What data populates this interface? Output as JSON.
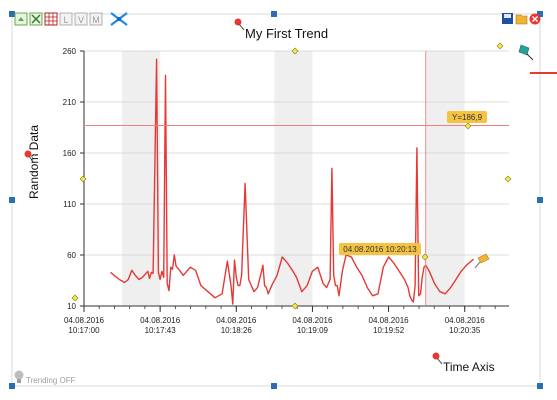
{
  "toolbar": {
    "left_icons": [
      "export-icon",
      "fit-icon",
      "grid-icon",
      "L-icon",
      "V-icon",
      "M-icon",
      "cursor-mode-icon"
    ],
    "left_letters": [
      "L",
      "V",
      "M"
    ],
    "right_icons": [
      "save-icon",
      "open-icon",
      "close-icon"
    ]
  },
  "status": {
    "trending": "Trending OFF"
  },
  "annotations": {
    "y_cursor": "Y=186,9",
    "x_cursor": "04.08.2016 10:20:13"
  },
  "colors": {
    "line": "#e53935",
    "cursor": "#f08080",
    "band": "#efefef",
    "tooltip_bg": "#f5c342",
    "handle": "#2a6fb0",
    "diamond": "#f2e84b"
  },
  "chart_data": {
    "type": "line",
    "title": "My First Trend",
    "xlabel": "Time Axis",
    "ylabel": "Random Data",
    "ylim": [
      10,
      260
    ],
    "xlim": [
      "10:17:00",
      "10:21:00"
    ],
    "yticks": [
      "10",
      "60",
      "110",
      "160",
      "210",
      "260"
    ],
    "xticks": [
      {
        "date": "04.08.2016",
        "time": "10:17:00"
      },
      {
        "date": "04.08.2016",
        "time": "10:17:43"
      },
      {
        "date": "04.08.2016",
        "time": "10:18:26"
      },
      {
        "date": "04.08.2016",
        "time": "10:19:09"
      },
      {
        "date": "04.08.2016",
        "time": "10:19:52"
      },
      {
        "date": "04.08.2016",
        "time": "10:20:35"
      }
    ],
    "grid": true,
    "cursor": {
      "x": "10:20:13",
      "y": 186.9
    },
    "series": [
      {
        "x": [
          "10:17:15",
          "10:17:17",
          "10:17:20",
          "10:17:23",
          "10:17:25",
          "10:17:27",
          "10:17:29",
          "10:17:31",
          "10:17:33",
          "10:17:36",
          "10:17:37",
          "10:17:38",
          "10:17:39",
          "10:17:41",
          "10:17:42",
          "10:17:43",
          "10:17:44",
          "10:17:45",
          "10:17:46",
          "10:17:47",
          "10:17:48",
          "10:17:49",
          "10:17:50",
          "10:17:51",
          "10:17:52",
          "10:17:54",
          "10:17:56",
          "10:17:58",
          "10:18:00",
          "10:18:03",
          "10:18:06",
          "10:18:10",
          "10:18:14",
          "10:18:18",
          "10:18:21",
          "10:18:23",
          "10:18:24",
          "10:18:25",
          "10:18:26",
          "10:18:27",
          "10:18:28",
          "10:18:29",
          "10:18:31",
          "10:18:33",
          "10:18:36",
          "10:18:38",
          "10:18:40",
          "10:18:41",
          "10:18:42",
          "10:18:43",
          "10:18:44",
          "10:18:46",
          "10:18:49",
          "10:18:52",
          "10:18:55",
          "10:18:58",
          "10:19:00",
          "10:19:03",
          "10:19:06",
          "10:19:09",
          "10:19:12",
          "10:19:15",
          "10:19:17",
          "10:19:19",
          "10:19:20",
          "10:19:21",
          "10:19:22",
          "10:19:23",
          "10:19:24",
          "10:19:26",
          "10:19:28",
          "10:19:31",
          "10:19:34",
          "10:19:37",
          "10:19:40",
          "10:19:43",
          "10:19:46",
          "10:19:49",
          "10:19:52",
          "10:19:55",
          "10:19:58",
          "10:20:01",
          "10:20:03",
          "10:20:04",
          "10:20:05",
          "10:20:06",
          "10:20:07",
          "10:20:08",
          "10:20:09",
          "10:20:10",
          "10:20:11",
          "10:20:12",
          "10:20:13",
          "10:20:15",
          "10:20:18",
          "10:20:21",
          "10:20:24",
          "10:20:27",
          "10:20:30",
          "10:20:33",
          "10:20:36",
          "10:20:40"
        ],
        "y": [
          43,
          40,
          36,
          33,
          36,
          45,
          40,
          36,
          38,
          44,
          37,
          43,
          42,
          252,
          43,
          36,
          44,
          38,
          236,
          32,
          25,
          48,
          46,
          60,
          49,
          45,
          40,
          44,
          48,
          45,
          30,
          24,
          18,
          22,
          54,
          30,
          12,
          55,
          38,
          30,
          30,
          40,
          130,
          36,
          24,
          28,
          42,
          50,
          30,
          28,
          22,
          30,
          40,
          58,
          52,
          44,
          38,
          24,
          30,
          44,
          48,
          32,
          28,
          36,
          145,
          40,
          30,
          30,
          20,
          45,
          60,
          58,
          48,
          40,
          28,
          20,
          22,
          48,
          58,
          52,
          44,
          36,
          28,
          20,
          16,
          14,
          30,
          165,
          20,
          22,
          38,
          48,
          50,
          44,
          32,
          24,
          22,
          28,
          36,
          44,
          50,
          56
        ]
      }
    ]
  }
}
